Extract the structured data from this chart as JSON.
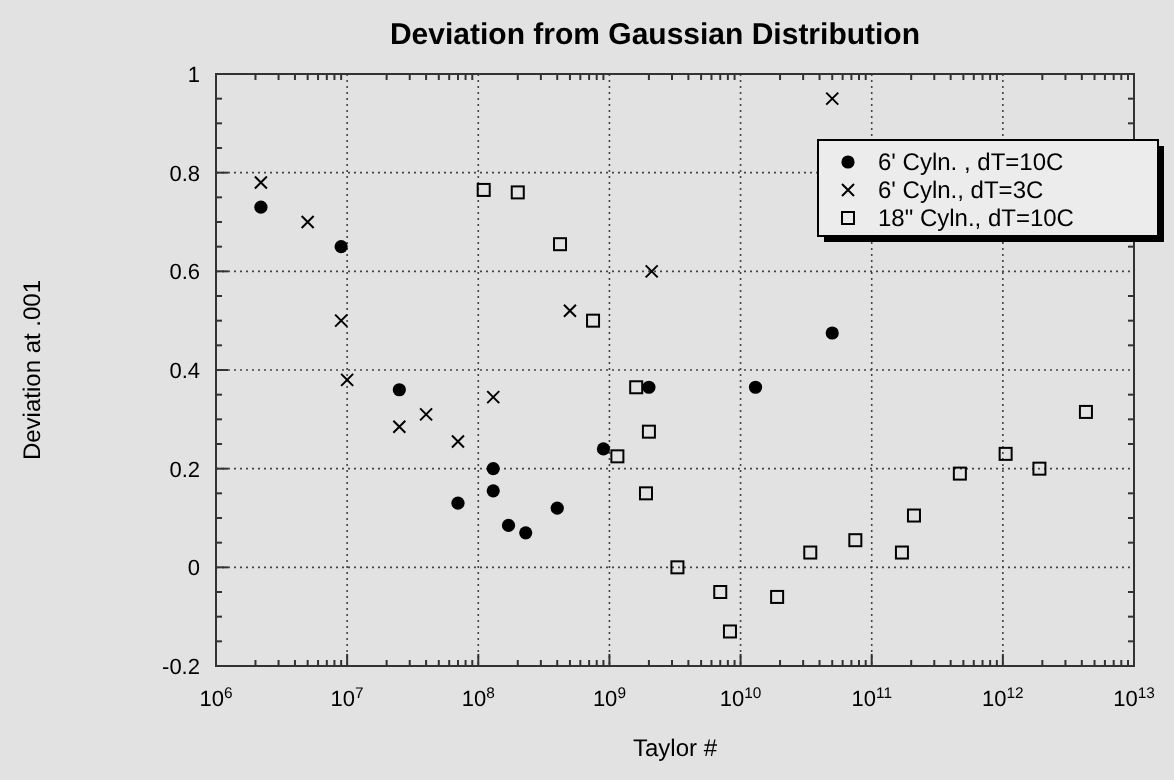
{
  "chart_data": {
    "type": "scatter",
    "title": "Deviation from Gaussian Distribution",
    "xlabel": "Taylor #",
    "ylabel": "Deviation at .001",
    "log": "x",
    "grid": true,
    "legend": "top right",
    "xlim": [
      1000000,
      10000000000000
    ],
    "ylim": [
      -0.2,
      1
    ],
    "xticks": [
      {
        "value": 1000000,
        "label": "10$^{6}$"
      },
      {
        "value": 10000000,
        "label": "10$^{7}$"
      },
      {
        "value": 100000000,
        "label": "10$^{8}$"
      },
      {
        "value": 1000000000,
        "label": "10$^{9}$"
      },
      {
        "value": 10000000000,
        "label": "10$^{10}$"
      },
      {
        "value": 100000000000,
        "label": "10$^{11}$"
      },
      {
        "value": 1000000000000,
        "label": "10$^{12}$"
      },
      {
        "value": 10000000000000,
        "label": "10$^{13}$"
      }
    ],
    "yticks": [
      -0.2,
      0,
      0.2,
      0.4,
      0.6,
      0.8,
      1
    ],
    "series": [
      {
        "name": "6' Cyln. , dT=10C",
        "color": "#000000",
        "marker": "circle",
        "x": [
          2200000,
          9000000,
          25000000,
          70000000,
          130000000,
          130000000,
          170000000,
          230000000,
          400000000,
          900000000,
          2000000000,
          13000000000,
          50000000000
        ],
        "values": [
          0.73,
          0.65,
          0.36,
          0.13,
          0.2,
          0.155,
          0.085,
          0.07,
          0.12,
          0.24,
          0.365,
          0.365,
          0.475
        ]
      },
      {
        "name": "6' Cyln., dT=3C",
        "color": "#000000",
        "marker": "cross",
        "x": [
          2200000,
          5000000,
          9000000,
          10000000,
          25000000,
          40000000,
          70000000,
          130000000,
          500000000,
          2100000000,
          50000000000
        ],
        "values": [
          0.78,
          0.7,
          0.5,
          0.38,
          0.285,
          0.31,
          0.255,
          0.345,
          0.52,
          0.6,
          0.95
        ]
      },
      {
        "name": "18\" Cyln., dT=10C",
        "color": "#000000",
        "marker": "square",
        "x": [
          110000000,
          200000000,
          420000000,
          750000000,
          1600000000,
          1150000000,
          2000000000,
          1900000000,
          3300000000,
          7000000000,
          8300000000,
          19000000000,
          34000000000,
          75000000000,
          170000000000,
          210000000000,
          470000000000,
          1050000000000,
          1900000000000,
          4300000000000
        ],
        "values": [
          0.765,
          0.76,
          0.655,
          0.5,
          0.365,
          0.225,
          0.275,
          0.15,
          0,
          -0.05,
          -0.13,
          -0.06,
          0.03,
          0.055,
          0.03,
          0.105,
          0.19,
          0.23,
          0.2,
          0.315
        ]
      }
    ]
  }
}
